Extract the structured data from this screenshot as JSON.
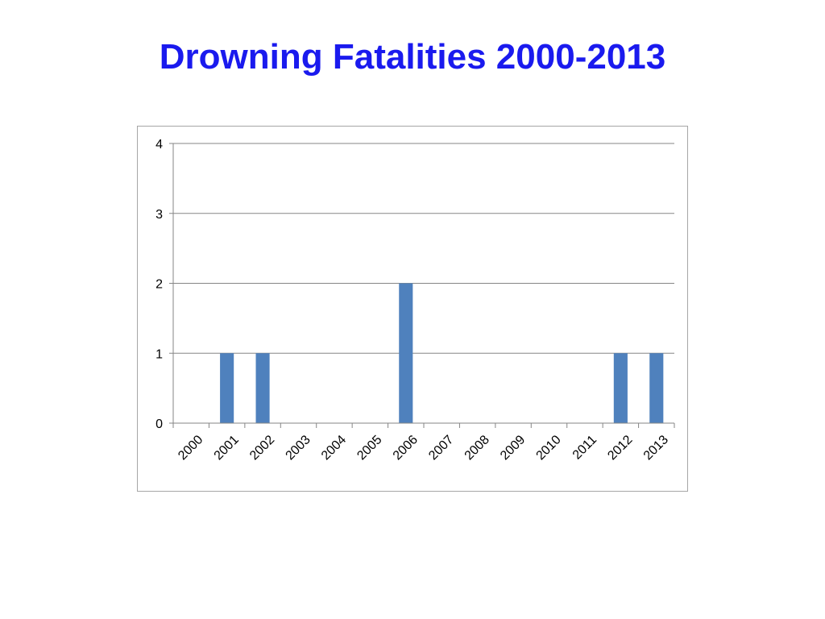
{
  "slide": {
    "title": "Drowning Fatalities 2000-2013"
  },
  "chart_data": {
    "type": "bar",
    "categories": [
      "2000",
      "2001",
      "2002",
      "2003",
      "2004",
      "2005",
      "2006",
      "2007",
      "2008",
      "2009",
      "2010",
      "2011",
      "2012",
      "2013"
    ],
    "values": [
      0,
      1,
      1,
      0,
      0,
      0,
      2,
      0,
      0,
      0,
      0,
      0,
      1,
      1
    ],
    "title": "",
    "xlabel": "",
    "ylabel": "",
    "ylim": [
      0,
      4
    ],
    "yticks": [
      "0",
      "1",
      "2",
      "3",
      "4"
    ],
    "grid": true,
    "legend": "none",
    "bar_color": "#4f81bd",
    "grid_color": "#868686",
    "axis_color": "#868686",
    "frame_color": "#a6a6a6"
  },
  "colors": {
    "title": "#1a1aee",
    "background": "#ffffff"
  }
}
